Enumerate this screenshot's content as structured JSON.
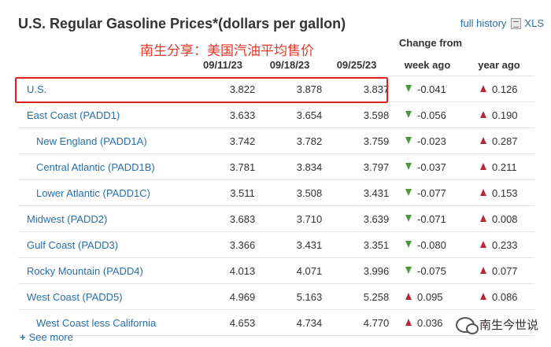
{
  "title": "U.S. Regular Gasoline Prices*(dollars per gallon)",
  "links": {
    "full_history": "full history",
    "xls": "XLS"
  },
  "annotation_top": "南生分享：美国汽油平均售价",
  "headers": {
    "change_from": "Change from",
    "dates": [
      "09/11/23",
      "09/18/23",
      "09/25/23"
    ],
    "week_ago": "week ago",
    "year_ago": "year ago"
  },
  "rows": [
    {
      "region": "U.S.",
      "sub": false,
      "v": [
        "3.822",
        "3.878",
        "3.837"
      ],
      "week": "-0.041",
      "week_dir": "down",
      "year": "0.126",
      "year_dir": "up"
    },
    {
      "region": "East Coast (PADD1)",
      "sub": false,
      "v": [
        "3.633",
        "3.654",
        "3.598"
      ],
      "week": "-0.056",
      "week_dir": "down",
      "year": "0.190",
      "year_dir": "up"
    },
    {
      "region": "New England (PADD1A)",
      "sub": true,
      "v": [
        "3.742",
        "3.782",
        "3.759"
      ],
      "week": "-0.023",
      "week_dir": "down",
      "year": "0.287",
      "year_dir": "up"
    },
    {
      "region": "Central Atlantic (PADD1B)",
      "sub": true,
      "v": [
        "3.781",
        "3.834",
        "3.797"
      ],
      "week": "-0.037",
      "week_dir": "down",
      "year": "0.211",
      "year_dir": "up"
    },
    {
      "region": "Lower Atlantic (PADD1C)",
      "sub": true,
      "v": [
        "3.511",
        "3.508",
        "3.431"
      ],
      "week": "-0.077",
      "week_dir": "down",
      "year": "0.153",
      "year_dir": "up"
    },
    {
      "region": "Midwest (PADD2)",
      "sub": false,
      "v": [
        "3.683",
        "3.710",
        "3.639"
      ],
      "week": "-0.071",
      "week_dir": "down",
      "year": "0.008",
      "year_dir": "up"
    },
    {
      "region": "Gulf Coast (PADD3)",
      "sub": false,
      "v": [
        "3.366",
        "3.431",
        "3.351"
      ],
      "week": "-0.080",
      "week_dir": "down",
      "year": "0.233",
      "year_dir": "up"
    },
    {
      "region": "Rocky Mountain (PADD4)",
      "sub": false,
      "v": [
        "4.013",
        "4.071",
        "3.996"
      ],
      "week": "-0.075",
      "week_dir": "down",
      "year": "0.077",
      "year_dir": "up"
    },
    {
      "region": "West Coast (PADD5)",
      "sub": false,
      "v": [
        "4.969",
        "5.163",
        "5.258"
      ],
      "week": "0.095",
      "week_dir": "up",
      "year": "0.086",
      "year_dir": "up"
    },
    {
      "region": "West Coast less California",
      "sub": true,
      "v": [
        "4.653",
        "4.734",
        "4.770"
      ],
      "week": "0.036",
      "week_dir": "up",
      "year": "0.095",
      "year_dir": "up"
    }
  ],
  "see_more": "See more",
  "watermark_bottom": "南生今世说",
  "colors": {
    "link": "#2a6fa8",
    "down": "#4a9a3a",
    "up": "#b22a3a",
    "highlight": "#e02020",
    "annotation": "#e03a2a"
  }
}
